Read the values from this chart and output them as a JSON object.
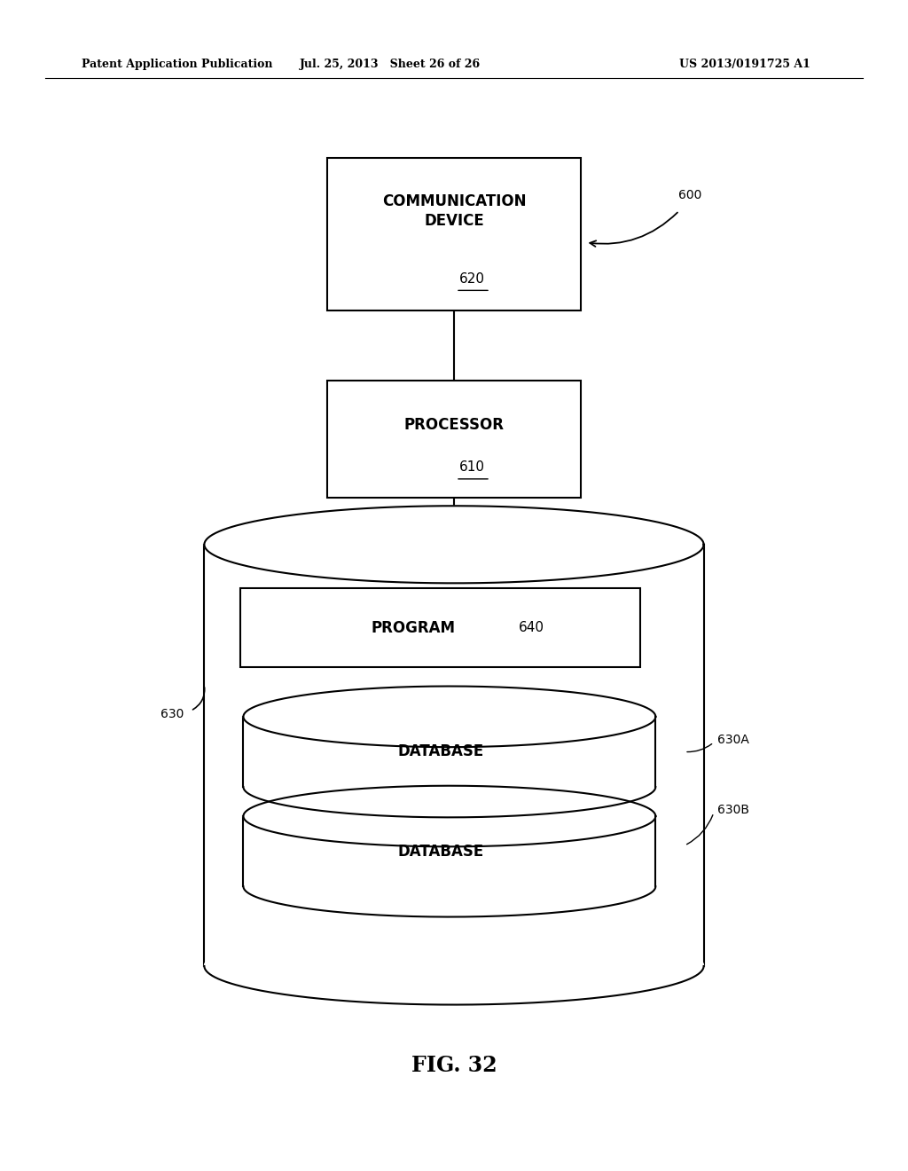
{
  "bg_color": "#ffffff",
  "header_left": "Patent Application Publication",
  "header_mid": "Jul. 25, 2013   Sheet 26 of 26",
  "header_right": "US 2013/0191725 A1",
  "fig_label": "FIG. 32",
  "comm_device_label": "COMMUNICATION\nDEVICE",
  "comm_device_num": "620",
  "processor_label": "PROCESSOR",
  "processor_num": "610",
  "storage_label": "630",
  "storage_num": "600",
  "program_label": "PROGRAM",
  "program_num": "640",
  "db1_label": "DATABASE",
  "db1_num": "630A",
  "db2_label": "DATABASE",
  "db2_num": "630B",
  "line_color": "#000000",
  "text_color": "#000000"
}
